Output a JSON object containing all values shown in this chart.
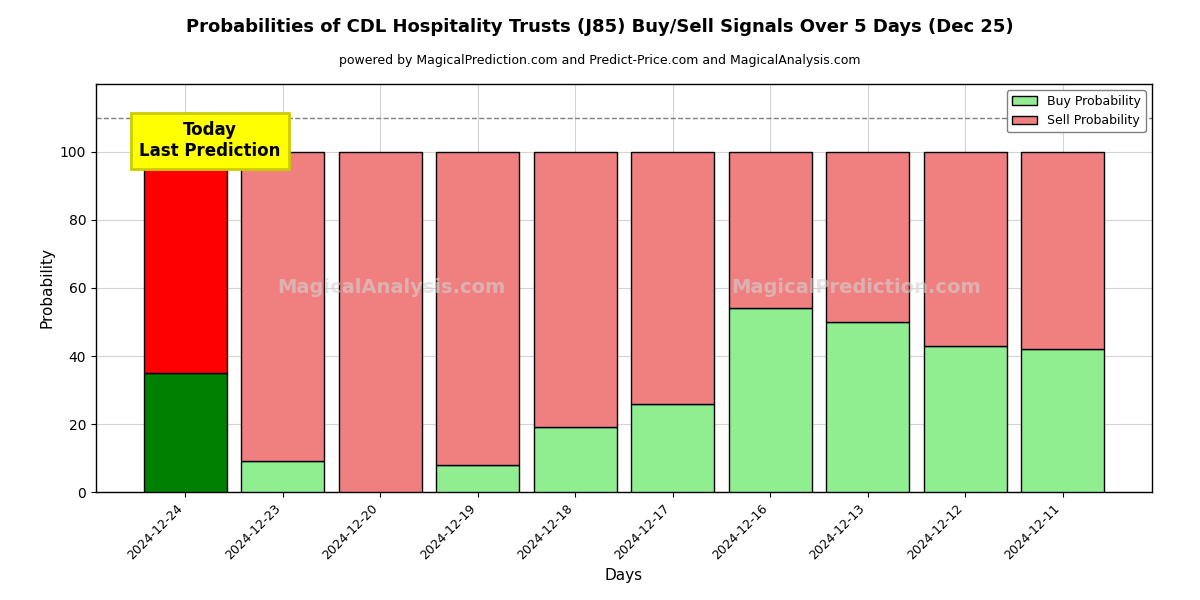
{
  "title": "Probabilities of CDL Hospitality Trusts (J85) Buy/Sell Signals Over 5 Days (Dec 25)",
  "subtitle": "powered by MagicalPrediction.com and Predict-Price.com and MagicalAnalysis.com",
  "xlabel": "Days",
  "ylabel": "Probability",
  "watermark_line1": "MagicalAnalysis.com",
  "watermark_line2": "MagicalPrediction.com",
  "categories": [
    "2024-12-24",
    "2024-12-23",
    "2024-12-20",
    "2024-12-19",
    "2024-12-18",
    "2024-12-17",
    "2024-12-16",
    "2024-12-13",
    "2024-12-12",
    "2024-12-11"
  ],
  "buy_probs": [
    35,
    9,
    0,
    8,
    19,
    26,
    54,
    50,
    43,
    42
  ],
  "sell_probs": [
    65,
    91,
    100,
    92,
    81,
    74,
    46,
    50,
    57,
    58
  ],
  "today_bar_index": 0,
  "buy_color_today": "#008000",
  "sell_color_today": "#ff0000",
  "buy_color_normal": "#90EE90",
  "sell_color_normal": "#F08080",
  "today_box_color": "#ffff00",
  "today_box_text": "Today\nLast Prediction",
  "dashed_line_y": 110,
  "ylim": [
    0,
    120
  ],
  "yticks": [
    0,
    20,
    40,
    60,
    80,
    100
  ],
  "legend_buy_label": "Buy Probability",
  "legend_sell_label": "Sell Probability",
  "bar_edgecolor": "#000000",
  "bar_linewidth": 1.0,
  "bar_width": 0.85,
  "figsize": [
    12,
    6
  ],
  "dpi": 100
}
